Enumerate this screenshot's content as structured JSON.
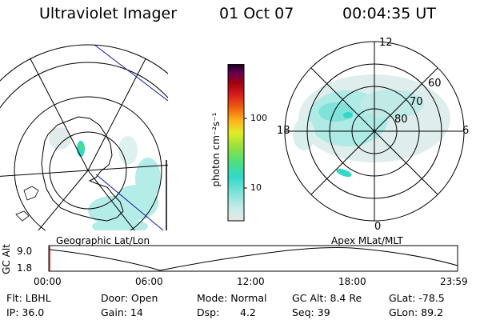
{
  "header": {
    "instrument": "Ultraviolet Imager",
    "date": "01 Oct 07",
    "time": "00:04:35 UT"
  },
  "left_panel": {
    "caption": "Geographic Lat/Lon"
  },
  "right_panel": {
    "caption": "Apex MLat/MLT",
    "mlt_labels": {
      "top": "12",
      "left": "18",
      "right": "6",
      "bottom": "0"
    },
    "lat_labels": [
      "60",
      "70",
      "80"
    ]
  },
  "colorbar": {
    "unit_label": "photon cm⁻²s⁻¹",
    "tick_labels": [
      "100",
      "10"
    ],
    "scale": "log",
    "colors_bottom_to_top": [
      "#e6e6e6",
      "#a8e9e4",
      "#33d8c8",
      "#4fe07a",
      "#9ee03a",
      "#e0ec2a",
      "#ffb21a",
      "#f06010",
      "#d8201a",
      "#a00010",
      "#6a0050",
      "#14001e"
    ]
  },
  "altitude_plot": {
    "y_label": "GC Alt",
    "y_ticks": [
      "9.0",
      "1.8"
    ],
    "x_ticks": [
      "00:00",
      "06:00",
      "12:00",
      "18:00",
      "23:59"
    ]
  },
  "footer": {
    "flt": "Flt: LBHL",
    "door": "Door: Open",
    "mode": "Mode: Normal",
    "gc_alt": "GC Alt: 8.4 Re",
    "glat": "GLat: -78.5",
    "ip": "IP: 36.0",
    "gain": "Gain: 14",
    "dsp_label": "Dsp:",
    "dsp_value": "4.2",
    "seq": "Seq: 39",
    "glon": "GLon: 89.2"
  }
}
